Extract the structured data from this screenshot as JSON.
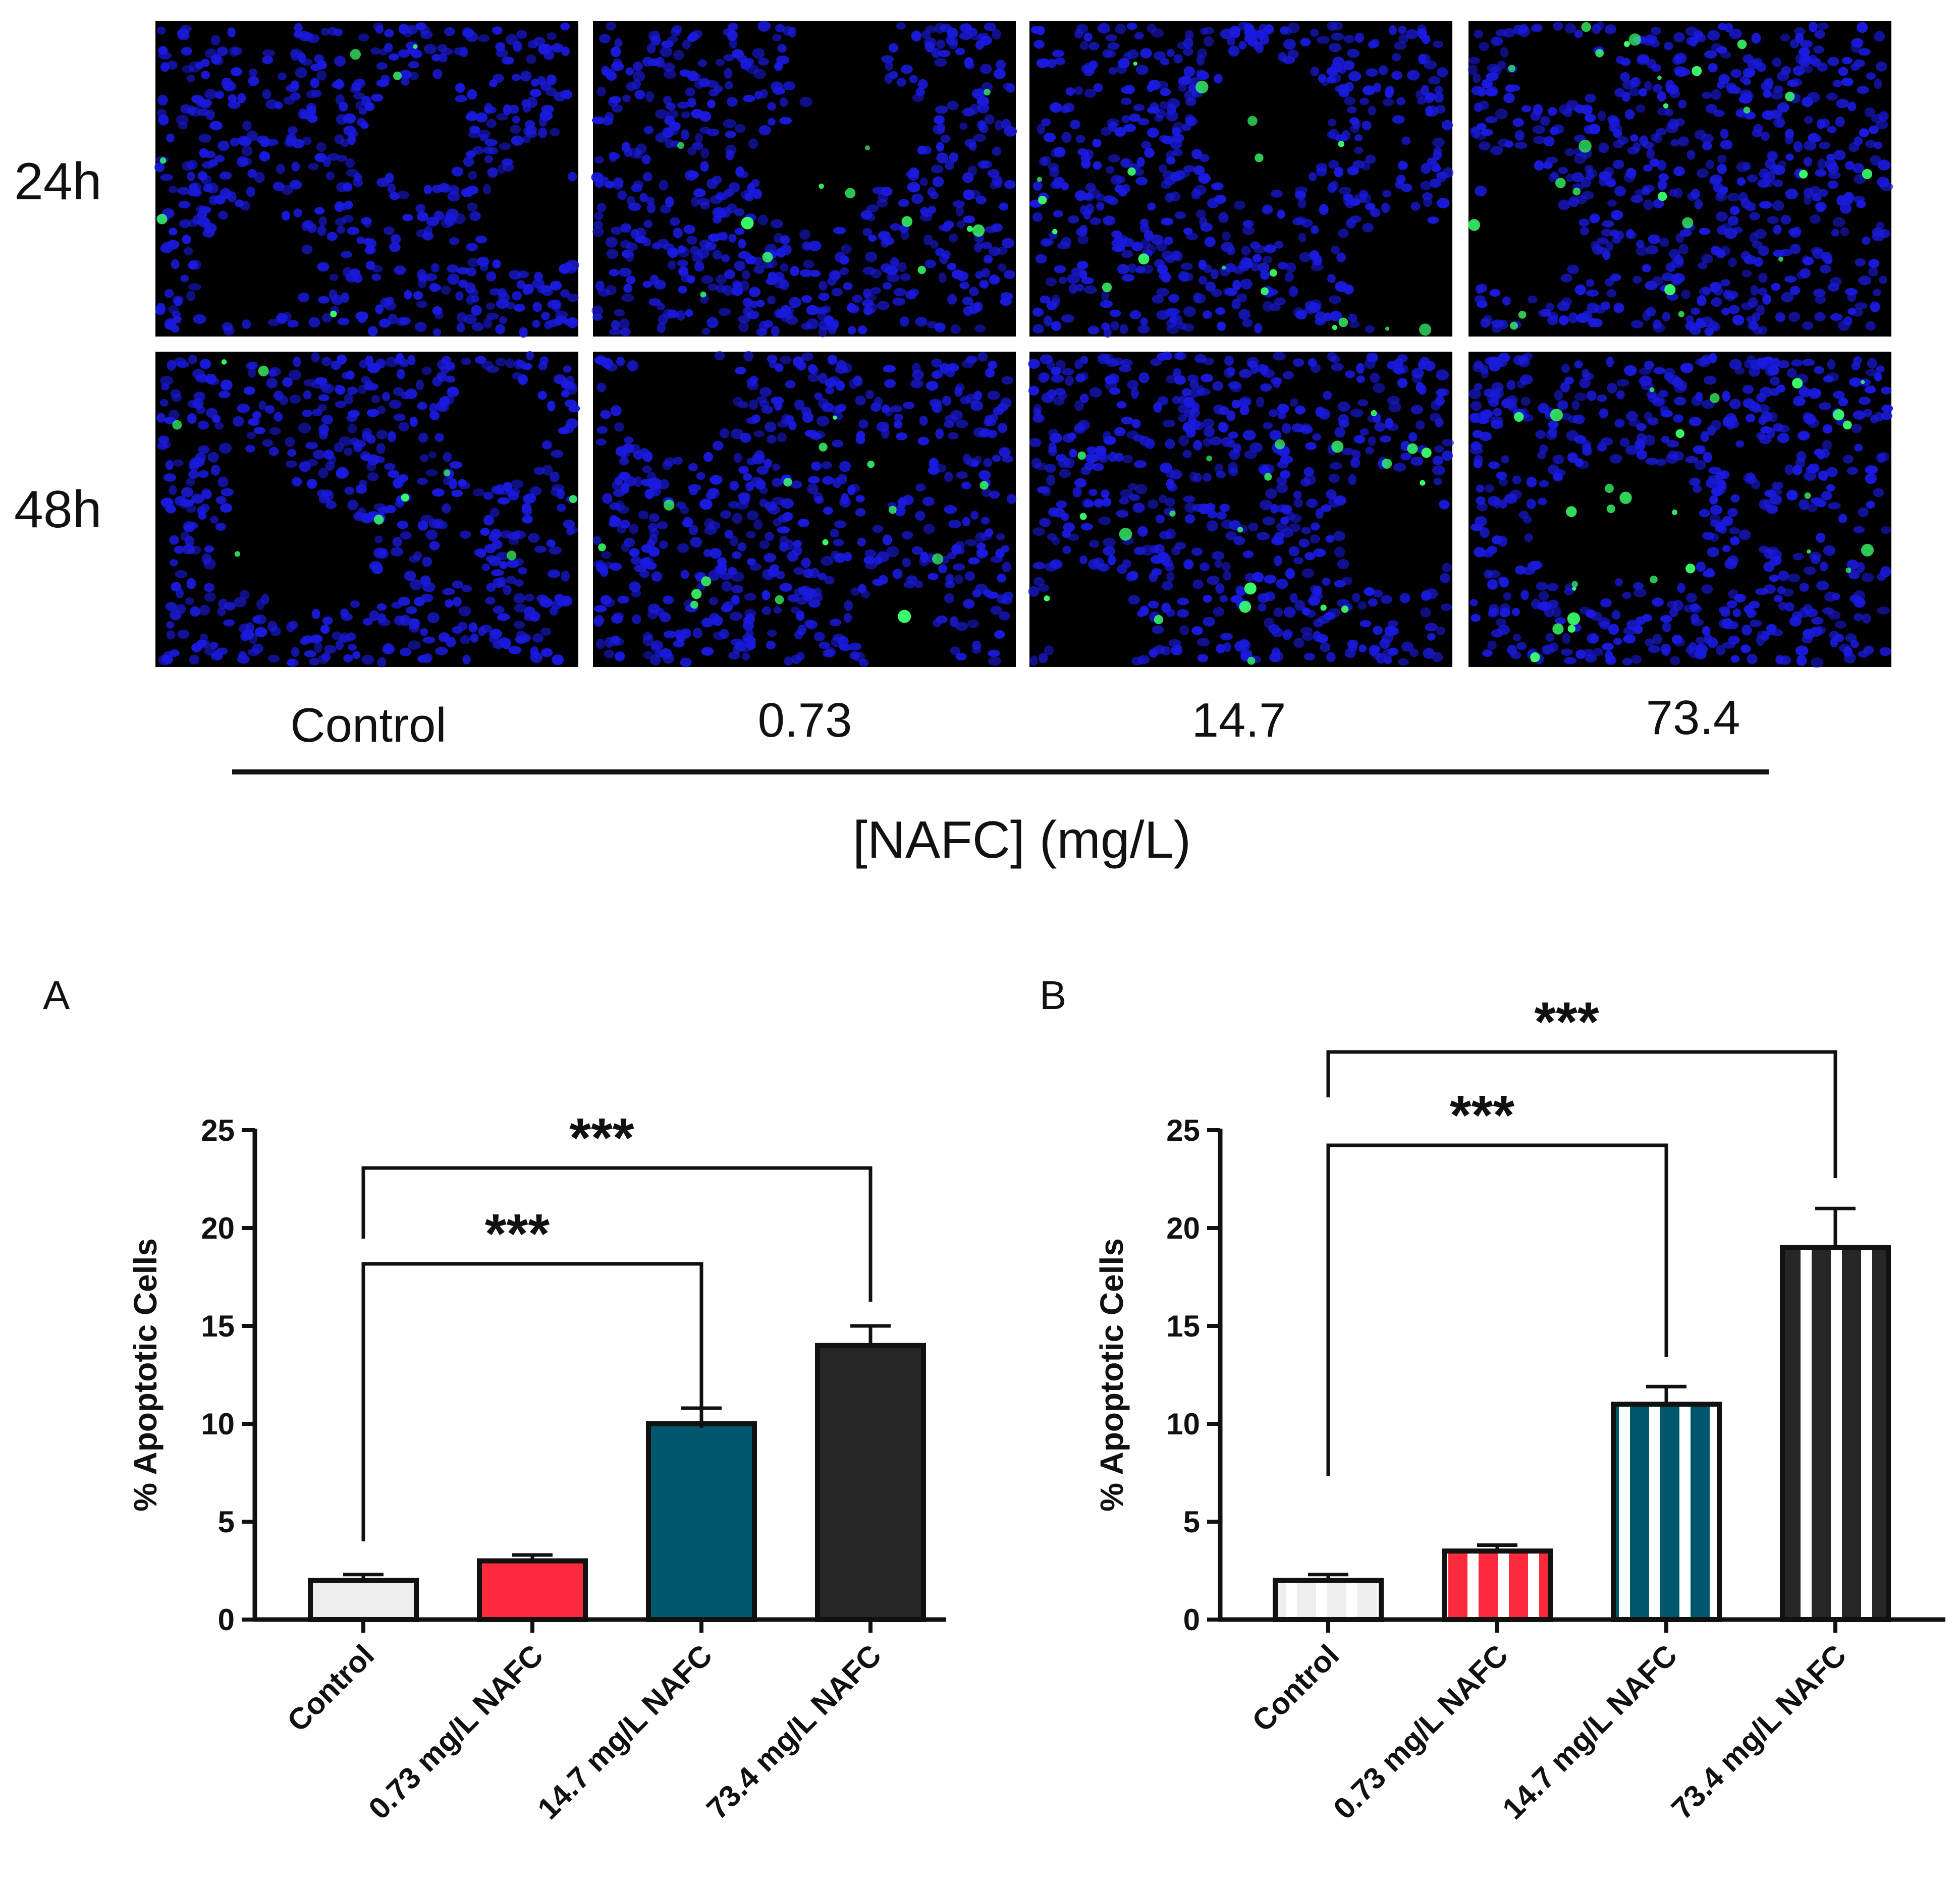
{
  "micrographs": {
    "rows": [
      "24h",
      "48h"
    ],
    "columns": [
      "Control",
      "0.73",
      "14.7",
      "73.4"
    ],
    "axis_title": "[NAFC] (mg/L)",
    "colors": {
      "background": "#000000",
      "nuclei": "#1a1adf",
      "apoptotic": "#39ff6a"
    }
  },
  "chart_data": [
    {
      "type": "bar",
      "panel": "A",
      "title": "",
      "xlabel": "",
      "ylabel": "% Apoptotic Cells",
      "ylim": [
        0,
        25
      ],
      "yticks": [
        0,
        5,
        10,
        15,
        20,
        25
      ],
      "categories": [
        "Control",
        "0.73 mg/L NAFC",
        "14.7 mg/L NAFC",
        "73.4 mg/L NAFC"
      ],
      "values": [
        2.0,
        3.0,
        10.0,
        14.0
      ],
      "errors": [
        0.3,
        0.3,
        0.8,
        1.0
      ],
      "colors": [
        "#eeeeee",
        "#fb2a3d",
        "#00566b",
        "#262626"
      ],
      "pattern": "solid",
      "significance": [
        {
          "from": 0,
          "to": 2,
          "label": "***"
        },
        {
          "from": 0,
          "to": 3,
          "label": "***"
        }
      ]
    },
    {
      "type": "bar",
      "panel": "B",
      "title": "",
      "xlabel": "",
      "ylabel": "% Apoptotic Cells",
      "ylim": [
        0,
        25
      ],
      "yticks": [
        0,
        5,
        10,
        15,
        20,
        25
      ],
      "categories": [
        "Control",
        "0.73 mg/L NAFC",
        "14.7 mg/L NAFC",
        "73.4 mg/L NAFC"
      ],
      "values": [
        2.0,
        3.5,
        11.0,
        19.0
      ],
      "errors": [
        0.3,
        0.3,
        0.9,
        2.0
      ],
      "colors": [
        "#eeeeee",
        "#fb2a3d",
        "#00566b",
        "#262626"
      ],
      "pattern": "vertical-stripes",
      "significance": [
        {
          "from": 0,
          "to": 2,
          "label": "***"
        },
        {
          "from": 0,
          "to": 3,
          "label": "***"
        }
      ]
    }
  ]
}
